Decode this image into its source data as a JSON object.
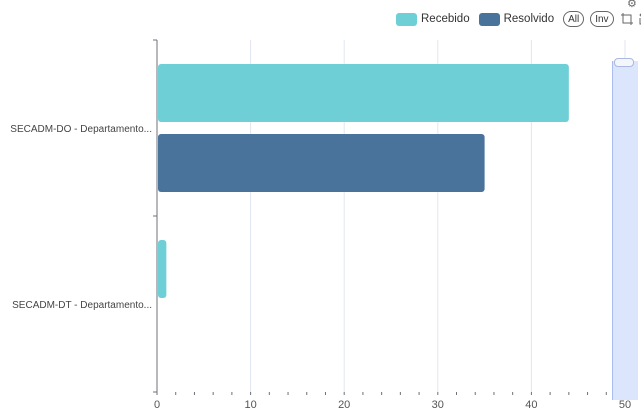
{
  "legend": {
    "recebido_label": "Recebido",
    "resolvido_label": "Resolvido",
    "all_label": "All",
    "inv_label": "Inv"
  },
  "toolbox": {
    "zoom_icon": "data-zoom-icon",
    "reset_icon": "zoom-reset-icon",
    "corner_icon": "gear-icon"
  },
  "colors": {
    "recebido": "#6fcfd6",
    "resolvido": "#4a739c",
    "axis": "#6e7079",
    "grid": "#e0e6f1",
    "slider": "#dbe5fb"
  },
  "chart_data": {
    "type": "bar",
    "orientation": "horizontal",
    "categories": [
      "SECADM-DO - Departamento...",
      "SECADM-DT - Departamento..."
    ],
    "series": [
      {
        "name": "Recebido",
        "values": [
          44,
          1
        ]
      },
      {
        "name": "Resolvido",
        "values": [
          35,
          0
        ]
      }
    ],
    "xlim": [
      0,
      50
    ],
    "x_ticks": [
      "0",
      "10",
      "20",
      "30",
      "40",
      "50"
    ],
    "grid": true,
    "legend_position": "top-right",
    "data_zoom": "right-side slider"
  }
}
